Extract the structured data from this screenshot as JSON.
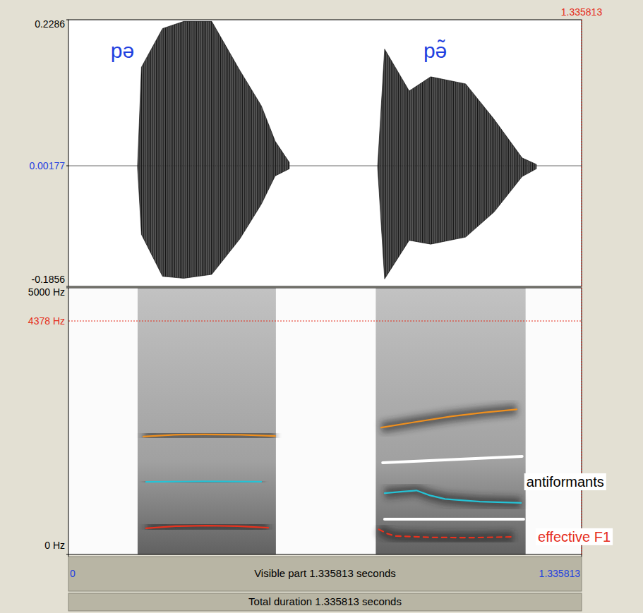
{
  "chart_data": [
    {
      "type": "waveform",
      "xlim": [
        0,
        1.335813
      ],
      "ylim": [
        -0.1856,
        0.2286
      ],
      "yticks": [
        0.2286,
        0.00177,
        -0.1856
      ],
      "series": [
        {
          "color": "#000000",
          "x": [
            0.18,
            0.19,
            0.245,
            0.3,
            0.373,
            0.446,
            0.502,
            0.538,
            0.575
          ],
          "upper": [
            0.002,
            0.155,
            0.215,
            0.226,
            0.226,
            0.15,
            0.095,
            0.04,
            0.007
          ],
          "lower": [
            -0.002,
            -0.105,
            -0.17,
            -0.173,
            -0.167,
            -0.112,
            -0.058,
            -0.014,
            -0.003
          ]
        },
        {
          "color": "#000000",
          "x": [
            0.805,
            0.823,
            0.887,
            0.943,
            1.034,
            1.108,
            1.181,
            1.218
          ],
          "upper": [
            0.002,
            0.183,
            0.118,
            0.14,
            0.129,
            0.074,
            0.014,
            0.004
          ],
          "lower": [
            -0.002,
            -0.174,
            -0.114,
            -0.12,
            -0.109,
            -0.07,
            -0.015,
            -0.003
          ]
        }
      ],
      "annotations": [
        {
          "text": "pə",
          "x": 0.11,
          "y": 0.169,
          "color": "#1f3fe0"
        },
        {
          "text": "pə̃",
          "x": 0.924,
          "y": 0.169,
          "color": "#1f3fe0"
        }
      ]
    },
    {
      "type": "spectrogram",
      "xlim": [
        0,
        1.335813
      ],
      "ylim": [
        0,
        5000
      ],
      "xticks": [
        0,
        1.335813
      ],
      "yticks": [
        {
          "value": 5000,
          "label": "5000 Hz"
        },
        {
          "value": 0,
          "label": "0 Hz"
        }
      ],
      "reference_line": {
        "value": 4378,
        "label": "4378 Hz",
        "color": "#e52b1a"
      },
      "cursor": {
        "value": 1.335813,
        "color": "#e52b1a"
      },
      "voiced": [
        [
          0.18,
          0.54
        ],
        [
          0.8,
          1.19
        ]
      ],
      "series": [
        {
          "color": "#f0901e",
          "line_style": "solid",
          "x": [
            0.195,
            0.275,
            0.355,
            0.45,
            0.538
          ],
          "values": [
            2210,
            2245,
            2250,
            2245,
            2220
          ]
        },
        {
          "color": "#25c3d6",
          "line_style": "solid",
          "x": [
            0.202,
            0.35,
            0.502
          ],
          "values": [
            1360,
            1370,
            1365
          ]
        },
        {
          "color": "#e8321e",
          "line_style": "solid",
          "x": [
            0.202,
            0.28,
            0.36,
            0.44,
            0.52
          ],
          "values": [
            490,
            530,
            540,
            530,
            500
          ]
        },
        {
          "color": "#f0901e",
          "line_style": "solid",
          "x": [
            0.814,
            0.9,
            0.998,
            1.08,
            1.167
          ],
          "values": [
            2380,
            2480,
            2590,
            2660,
            2720
          ]
        },
        {
          "color": "#ffffff",
          "line_style": "solid",
          "x": [
            0.818,
            1.181
          ],
          "values": [
            1720,
            1840
          ]
        },
        {
          "color": "#25c3d6",
          "line_style": "solid",
          "x": [
            0.823,
            0.87,
            0.906,
            0.94,
            0.98,
            1.071,
            1.178
          ],
          "values": [
            1150,
            1180,
            1200,
            1110,
            1040,
            990,
            966
          ]
        },
        {
          "color": "#ffffff",
          "line_style": "solid",
          "x": [
            0.823,
            1.185
          ],
          "values": [
            660,
            660
          ]
        },
        {
          "color": "#e8321e",
          "line_style": "dashed",
          "x": [
            0.808,
            0.83,
            0.851,
            0.95,
            1.05,
            1.159
          ],
          "values": [
            470,
            390,
            345,
            320,
            315,
            330
          ]
        }
      ],
      "annotations": [
        {
          "text": "antiformants",
          "x": 1.192,
          "y": 1270,
          "color": "#000000"
        },
        {
          "text": "effective F1",
          "x": 1.222,
          "y": 240,
          "color": "#e52b1a"
        }
      ],
      "visible_label": "Visible part 1.335813 seconds",
      "total_label": "Total duration 1.335813 seconds"
    }
  ]
}
